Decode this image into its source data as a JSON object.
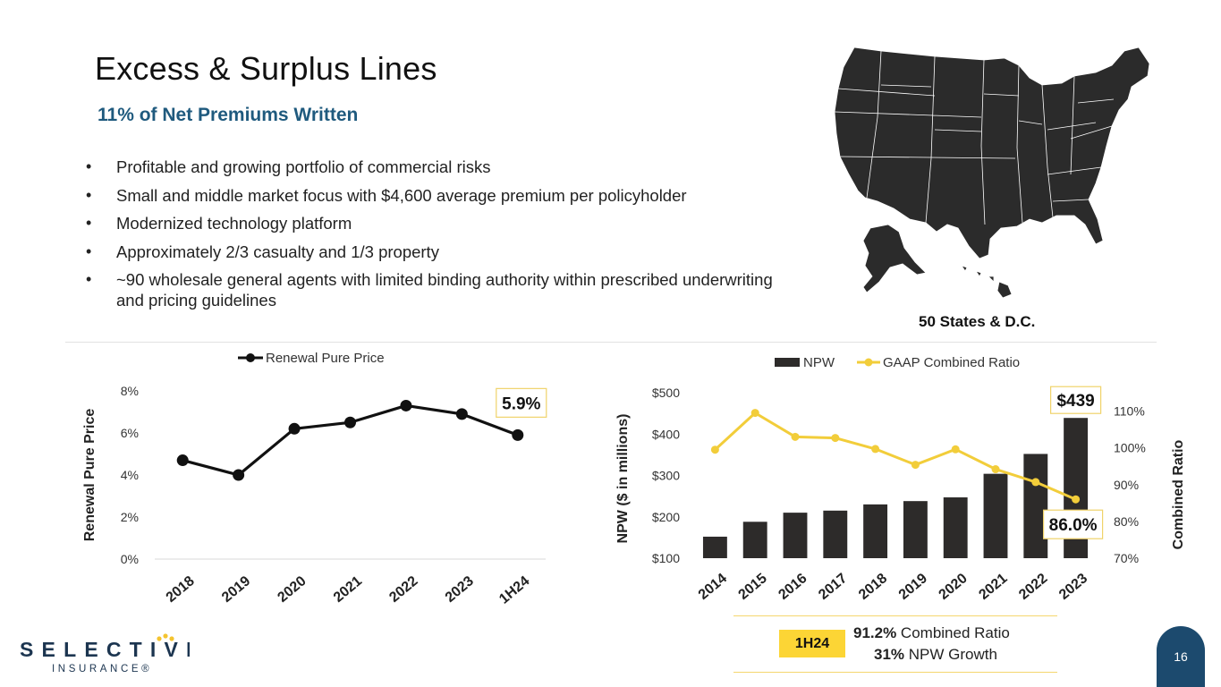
{
  "header": {
    "title": "Excess & Surplus Lines",
    "subtitle": "11% of Net Premiums Written"
  },
  "bullets": [
    "Profitable and growing portfolio of commercial risks",
    "Small and middle market focus with $4,600 average premium per policyholder",
    "Modernized technology platform",
    "Approximately 2/3 casualty and 1/3 property",
    "~90 wholesale general agents with limited binding authority within prescribed underwriting and pricing guidelines"
  ],
  "map": {
    "icon": "us-map-icon",
    "caption": "50 States & D.C."
  },
  "chart_data": [
    {
      "type": "line",
      "categories": [
        "2018",
        "2019",
        "2020",
        "2021",
        "2022",
        "2023",
        "1H24"
      ],
      "series": [
        {
          "name": "Renewal Pure Price",
          "values": [
            4.7,
            4.0,
            6.2,
            6.5,
            7.3,
            6.9,
            5.9
          ]
        }
      ],
      "ylabel": "Renewal Pure Price",
      "ylim": [
        0,
        8
      ],
      "yticks": [
        "0%",
        "2%",
        "4%",
        "6%",
        "8%"
      ],
      "callout": "5.9%",
      "legend": "top-center",
      "color": "#111111"
    },
    {
      "type": "bar",
      "categories": [
        "2014",
        "2015",
        "2016",
        "2017",
        "2018",
        "2019",
        "2020",
        "2021",
        "2022",
        "2023"
      ],
      "series": [
        {
          "name": "NPW",
          "type": "bar",
          "axis": "left",
          "values": [
            152,
            188,
            210,
            215,
            230,
            238,
            247,
            304,
            352,
            439
          ],
          "color": "#2d2b2a"
        },
        {
          "name": "GAAP Combined Ratio",
          "type": "line",
          "axis": "right",
          "values": [
            99.5,
            109.5,
            103,
            102.7,
            99.7,
            95.4,
            99.6,
            94.2,
            90.7,
            86.0
          ],
          "color": "#f2cd3a"
        }
      ],
      "ylabel": "NPW ($ in millions)",
      "ylim": [
        100,
        500
      ],
      "yticks": [
        "$100",
        "$200",
        "$300",
        "$400",
        "$500"
      ],
      "y2label": "Combined Ratio",
      "y2lim": [
        70,
        115
      ],
      "y2ticks": [
        "70%",
        "80%",
        "90%",
        "100%",
        "110%"
      ],
      "callouts": [
        "$439",
        "86.0%"
      ],
      "legend": "top-center"
    }
  ],
  "summary": {
    "tag": "1H24",
    "line1_value": "91.2%",
    "line1_text": " Combined Ratio",
    "line2_value": "31%",
    "line2_text": " NPW Growth"
  },
  "footer": {
    "logo_text": "SELECTIVE",
    "logo_sub": "INSURANCE®",
    "page_number": "16"
  }
}
